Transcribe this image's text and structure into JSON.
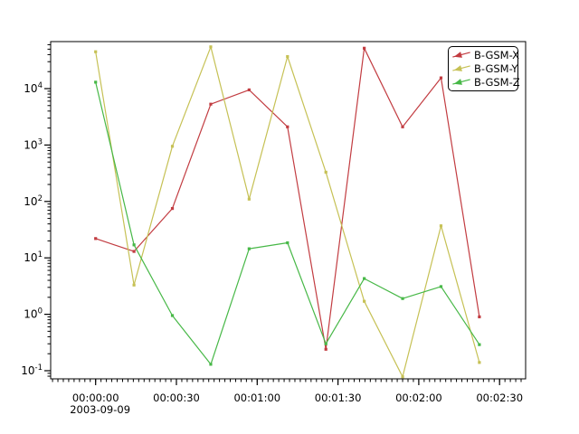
{
  "chart_data": {
    "type": "line",
    "title": "",
    "xlabel": "",
    "ylabel": "",
    "x_axis": {
      "date_label": "2003-09-09",
      "major_tick_seconds": [
        0,
        30,
        60,
        90,
        120,
        150
      ],
      "major_tick_labels": [
        "00:00:00",
        "00:00:30",
        "00:01:00",
        "00:01:30",
        "00:02:00",
        "00:02:30"
      ],
      "minor_tick_step_seconds": 2
    },
    "y_axis": {
      "scale": "log",
      "min": 0.072,
      "max": 68000,
      "major_tick_exponents": [
        4,
        3,
        2,
        1,
        0,
        -1
      ],
      "tick_base": "10"
    },
    "t_seconds": [
      0,
      14.25,
      28.5,
      42.75,
      57,
      71.25,
      85.5,
      99.75,
      114,
      128.25,
      142.5
    ],
    "series": [
      {
        "name": "B-GSM-X",
        "color": "#c23c41",
        "values": [
          22,
          13,
          75,
          5300,
          9500,
          2100,
          0.24,
          52000,
          2100,
          15500,
          0.9
        ]
      },
      {
        "name": "B-GSM-Y",
        "color": "#c6c155",
        "values": [
          45000,
          3.3,
          950,
          55000,
          110,
          37000,
          330,
          1.7,
          0.078,
          37,
          0.14
        ]
      },
      {
        "name": "B-GSM-Z",
        "color": "#47b847",
        "values": [
          13000,
          17,
          0.95,
          0.13,
          14.5,
          18.5,
          0.3,
          4.3,
          1.9,
          3.1,
          0.29
        ]
      }
    ],
    "legend": {
      "position": "top-right",
      "labels": [
        "B-GSM-X",
        "B-GSM-Y",
        "B-GSM-Z"
      ]
    }
  }
}
